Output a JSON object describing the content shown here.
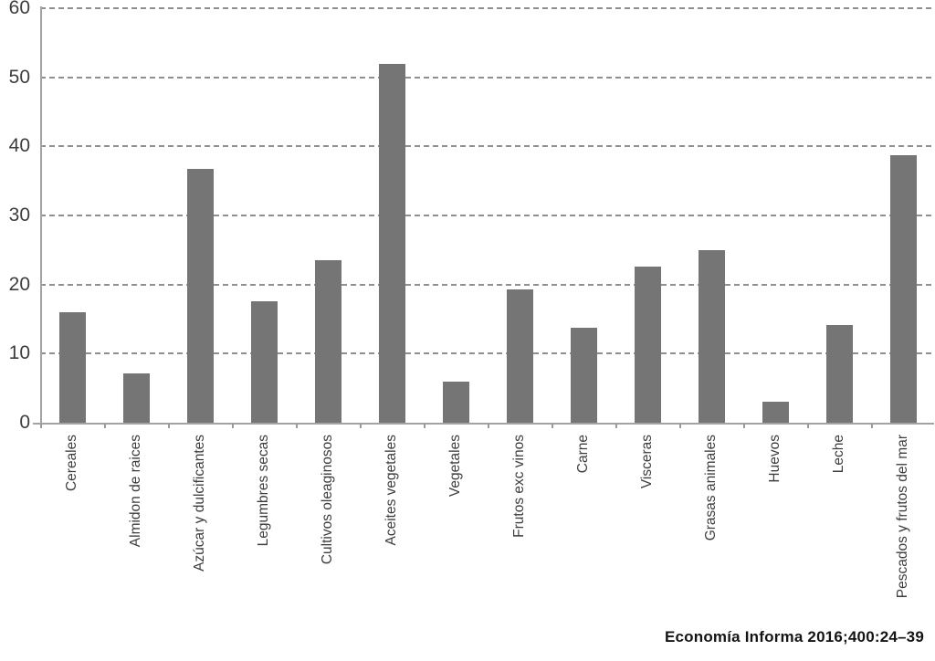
{
  "figure": {
    "citation": "Economía Informa 2016;400:24–39"
  },
  "chart_data": {
    "type": "bar",
    "title": "",
    "xlabel": "",
    "ylabel": "",
    "categories": [
      "Cereales",
      "Almidon de raices",
      "Azúcar y dulcificantes",
      "Legumbres secas",
      "Cultivos oleaginosos",
      "Aceites vegetales",
      "Vegetales",
      "Frutos exc vinos",
      "Carne",
      "Visceras",
      "Grasas animales",
      "Huevos",
      "Leche",
      "Pescados y frutos del mar"
    ],
    "values": [
      16,
      7.2,
      36.8,
      17.6,
      23.5,
      52,
      6,
      19.3,
      13.8,
      22.6,
      25,
      3,
      14.2,
      38.7
    ],
    "ylim": [
      0,
      60
    ],
    "yticks": [
      0,
      10,
      20,
      30,
      40,
      50,
      60
    ],
    "grid": "horizontal-dashed",
    "legend": "none",
    "bar_color": "#757575",
    "x_tick_label_rotation": 90
  }
}
